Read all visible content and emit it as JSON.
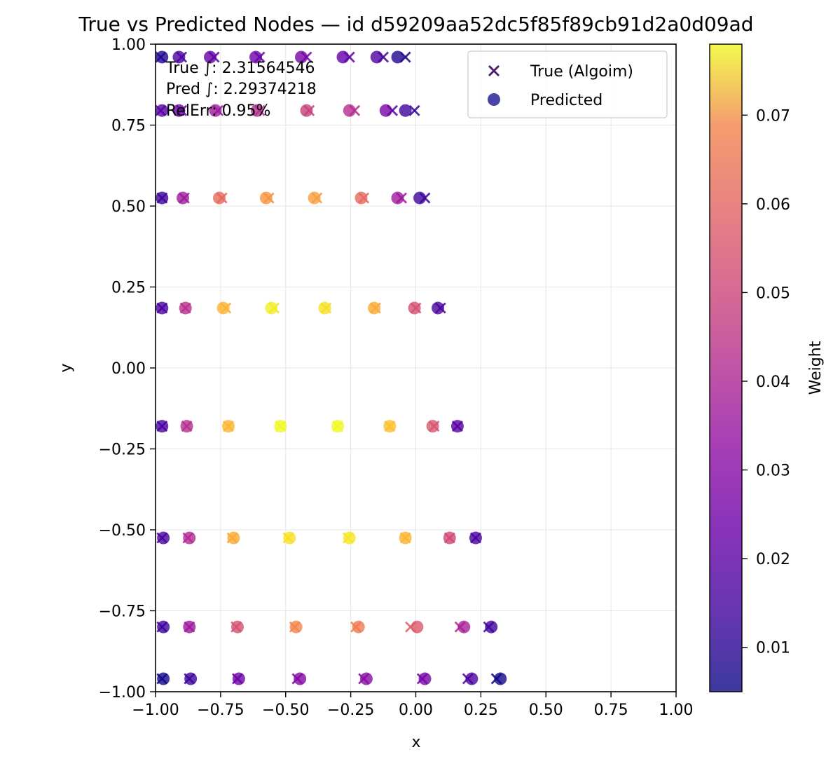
{
  "chart_data": {
    "type": "scatter",
    "title": "True vs Predicted Nodes — id d59209aa52dc5f85f89cb91d2a0d09ad",
    "xlabel": "x",
    "ylabel": "y",
    "xlim": [
      -1.0,
      1.0
    ],
    "ylim": [
      -1.0,
      1.0
    ],
    "grid": true,
    "x_ticks": [
      "−1.00",
      "−0.75",
      "−0.50",
      "−0.25",
      "0.00",
      "0.25",
      "0.50",
      "0.75",
      "1.00"
    ],
    "y_ticks": [
      "−1.00",
      "−0.75",
      "−0.50",
      "−0.25",
      "0.00",
      "0.25",
      "0.50",
      "0.75",
      "1.00"
    ],
    "x_tick_values": [
      -1,
      -0.75,
      -0.5,
      -0.25,
      0,
      0.25,
      0.5,
      0.75,
      1
    ],
    "y_tick_values": [
      -1,
      -0.75,
      -0.5,
      -0.25,
      0,
      0.25,
      0.5,
      0.75,
      1
    ],
    "legend": {
      "position": "upper right",
      "entries": [
        {
          "label": "True (Algoim)",
          "marker": "x",
          "color": "#4b1a6e"
        },
        {
          "label": "Predicted",
          "marker": "o",
          "color": "#2a239a"
        }
      ]
    },
    "annotations": [
      "True ∫: 2.31564546",
      "Pred ∫: 2.29374218",
      "RelErr: 0.95%"
    ],
    "colorbar": {
      "label": "Weight",
      "colormap": "plasma",
      "vmin": 0.005,
      "vmax": 0.078,
      "ticks": [
        "0.01",
        "0.02",
        "0.03",
        "0.04",
        "0.05",
        "0.06",
        "0.07"
      ],
      "tick_values": [
        0.01,
        0.02,
        0.03,
        0.04,
        0.05,
        0.06,
        0.07
      ]
    },
    "series": [
      {
        "name": "True (Algoim)",
        "marker": "x",
        "points": [
          {
            "x": -0.975,
            "y": -0.96,
            "w": 0.006
          },
          {
            "x": -0.87,
            "y": -0.96,
            "w": 0.012
          },
          {
            "x": -0.685,
            "y": -0.96,
            "w": 0.018
          },
          {
            "x": -0.455,
            "y": -0.96,
            "w": 0.022
          },
          {
            "x": -0.2,
            "y": -0.96,
            "w": 0.024
          },
          {
            "x": 0.025,
            "y": -0.96,
            "w": 0.022
          },
          {
            "x": 0.2,
            "y": -0.96,
            "w": 0.014
          },
          {
            "x": 0.31,
            "y": -0.96,
            "w": 0.006
          },
          {
            "x": -0.975,
            "y": -0.8,
            "w": 0.012
          },
          {
            "x": -0.87,
            "y": -0.8,
            "w": 0.03
          },
          {
            "x": -0.69,
            "y": -0.8,
            "w": 0.045
          },
          {
            "x": -0.465,
            "y": -0.8,
            "w": 0.057
          },
          {
            "x": -0.23,
            "y": -0.8,
            "w": 0.055
          },
          {
            "x": -0.02,
            "y": -0.8,
            "w": 0.048
          },
          {
            "x": 0.17,
            "y": -0.8,
            "w": 0.034
          },
          {
            "x": 0.28,
            "y": -0.8,
            "w": 0.012
          },
          {
            "x": -0.975,
            "y": -0.525,
            "w": 0.014
          },
          {
            "x": -0.875,
            "y": -0.525,
            "w": 0.035
          },
          {
            "x": -0.705,
            "y": -0.525,
            "w": 0.062
          },
          {
            "x": -0.49,
            "y": -0.525,
            "w": 0.072
          },
          {
            "x": -0.26,
            "y": -0.525,
            "w": 0.073
          },
          {
            "x": -0.04,
            "y": -0.525,
            "w": 0.066
          },
          {
            "x": 0.13,
            "y": -0.525,
            "w": 0.042
          },
          {
            "x": 0.23,
            "y": -0.525,
            "w": 0.014
          },
          {
            "x": -0.975,
            "y": -0.18,
            "w": 0.014
          },
          {
            "x": -0.88,
            "y": -0.18,
            "w": 0.036
          },
          {
            "x": -0.72,
            "y": -0.18,
            "w": 0.066
          },
          {
            "x": -0.52,
            "y": -0.18,
            "w": 0.077
          },
          {
            "x": -0.3,
            "y": -0.18,
            "w": 0.077
          },
          {
            "x": -0.1,
            "y": -0.18,
            "w": 0.068
          },
          {
            "x": 0.07,
            "y": -0.18,
            "w": 0.046
          },
          {
            "x": 0.16,
            "y": -0.18,
            "w": 0.016
          },
          {
            "x": -0.975,
            "y": 0.185,
            "w": 0.014
          },
          {
            "x": -0.885,
            "y": 0.185,
            "w": 0.035
          },
          {
            "x": -0.73,
            "y": 0.185,
            "w": 0.064
          },
          {
            "x": -0.545,
            "y": 0.185,
            "w": 0.074
          },
          {
            "x": -0.345,
            "y": 0.185,
            "w": 0.072
          },
          {
            "x": -0.155,
            "y": 0.185,
            "w": 0.062
          },
          {
            "x": 0.0,
            "y": 0.185,
            "w": 0.044
          },
          {
            "x": 0.095,
            "y": 0.185,
            "w": 0.014
          },
          {
            "x": -0.975,
            "y": 0.525,
            "w": 0.012
          },
          {
            "x": -0.89,
            "y": 0.525,
            "w": 0.03
          },
          {
            "x": -0.745,
            "y": 0.525,
            "w": 0.05
          },
          {
            "x": -0.565,
            "y": 0.525,
            "w": 0.058
          },
          {
            "x": -0.38,
            "y": 0.525,
            "w": 0.06
          },
          {
            "x": -0.2,
            "y": 0.525,
            "w": 0.05
          },
          {
            "x": -0.055,
            "y": 0.525,
            "w": 0.03
          },
          {
            "x": 0.035,
            "y": 0.525,
            "w": 0.012
          },
          {
            "x": -0.98,
            "y": 0.795,
            "w": 0.016
          },
          {
            "x": -0.9,
            "y": 0.795,
            "w": 0.02
          },
          {
            "x": -0.76,
            "y": 0.795,
            "w": 0.03
          },
          {
            "x": -0.6,
            "y": 0.795,
            "w": 0.035
          },
          {
            "x": -0.41,
            "y": 0.795,
            "w": 0.04
          },
          {
            "x": -0.235,
            "y": 0.795,
            "w": 0.035
          },
          {
            "x": -0.09,
            "y": 0.795,
            "w": 0.016
          },
          {
            "x": -0.005,
            "y": 0.795,
            "w": 0.01
          },
          {
            "x": -0.98,
            "y": 0.96,
            "w": 0.008
          },
          {
            "x": -0.9,
            "y": 0.96,
            "w": 0.014
          },
          {
            "x": -0.775,
            "y": 0.96,
            "w": 0.018
          },
          {
            "x": -0.6,
            "y": 0.96,
            "w": 0.02
          },
          {
            "x": -0.42,
            "y": 0.96,
            "w": 0.022
          },
          {
            "x": -0.255,
            "y": 0.96,
            "w": 0.018
          },
          {
            "x": -0.125,
            "y": 0.96,
            "w": 0.012
          },
          {
            "x": -0.04,
            "y": 0.96,
            "w": 0.006
          }
        ]
      },
      {
        "name": "Predicted",
        "marker": "o",
        "points": [
          {
            "x": -0.97,
            "y": -0.96,
            "w": 0.006
          },
          {
            "x": -0.865,
            "y": -0.96,
            "w": 0.012
          },
          {
            "x": -0.68,
            "y": -0.96,
            "w": 0.02
          },
          {
            "x": -0.445,
            "y": -0.96,
            "w": 0.025
          },
          {
            "x": -0.19,
            "y": -0.96,
            "w": 0.026
          },
          {
            "x": 0.035,
            "y": -0.96,
            "w": 0.022
          },
          {
            "x": 0.215,
            "y": -0.96,
            "w": 0.014
          },
          {
            "x": 0.325,
            "y": -0.96,
            "w": 0.006
          },
          {
            "x": -0.97,
            "y": -0.8,
            "w": 0.012
          },
          {
            "x": -0.87,
            "y": -0.8,
            "w": 0.03
          },
          {
            "x": -0.685,
            "y": -0.8,
            "w": 0.044
          },
          {
            "x": -0.46,
            "y": -0.8,
            "w": 0.056
          },
          {
            "x": -0.22,
            "y": -0.8,
            "w": 0.054
          },
          {
            "x": 0.005,
            "y": -0.8,
            "w": 0.046
          },
          {
            "x": 0.185,
            "y": -0.8,
            "w": 0.032
          },
          {
            "x": 0.29,
            "y": -0.8,
            "w": 0.012
          },
          {
            "x": -0.97,
            "y": -0.525,
            "w": 0.014
          },
          {
            "x": -0.87,
            "y": -0.525,
            "w": 0.034
          },
          {
            "x": -0.7,
            "y": -0.525,
            "w": 0.064
          },
          {
            "x": -0.485,
            "y": -0.525,
            "w": 0.074
          },
          {
            "x": -0.255,
            "y": -0.525,
            "w": 0.075
          },
          {
            "x": -0.04,
            "y": -0.525,
            "w": 0.066
          },
          {
            "x": 0.13,
            "y": -0.525,
            "w": 0.042
          },
          {
            "x": 0.23,
            "y": -0.525,
            "w": 0.014
          },
          {
            "x": -0.975,
            "y": -0.18,
            "w": 0.014
          },
          {
            "x": -0.88,
            "y": -0.18,
            "w": 0.035
          },
          {
            "x": -0.72,
            "y": -0.18,
            "w": 0.066
          },
          {
            "x": -0.52,
            "y": -0.18,
            "w": 0.078
          },
          {
            "x": -0.3,
            "y": -0.18,
            "w": 0.078
          },
          {
            "x": -0.1,
            "y": -0.18,
            "w": 0.068
          },
          {
            "x": 0.065,
            "y": -0.18,
            "w": 0.045
          },
          {
            "x": 0.16,
            "y": -0.18,
            "w": 0.016
          },
          {
            "x": -0.975,
            "y": 0.185,
            "w": 0.014
          },
          {
            "x": -0.885,
            "y": 0.185,
            "w": 0.036
          },
          {
            "x": -0.74,
            "y": 0.185,
            "w": 0.066
          },
          {
            "x": -0.555,
            "y": 0.185,
            "w": 0.076
          },
          {
            "x": -0.35,
            "y": 0.185,
            "w": 0.074
          },
          {
            "x": -0.16,
            "y": 0.185,
            "w": 0.064
          },
          {
            "x": -0.005,
            "y": 0.185,
            "w": 0.044
          },
          {
            "x": 0.085,
            "y": 0.185,
            "w": 0.014
          },
          {
            "x": -0.975,
            "y": 0.525,
            "w": 0.012
          },
          {
            "x": -0.895,
            "y": 0.525,
            "w": 0.03
          },
          {
            "x": -0.755,
            "y": 0.525,
            "w": 0.05
          },
          {
            "x": -0.575,
            "y": 0.525,
            "w": 0.06
          },
          {
            "x": -0.39,
            "y": 0.525,
            "w": 0.062
          },
          {
            "x": -0.21,
            "y": 0.525,
            "w": 0.05
          },
          {
            "x": -0.07,
            "y": 0.525,
            "w": 0.03
          },
          {
            "x": 0.015,
            "y": 0.525,
            "w": 0.012
          },
          {
            "x": -0.975,
            "y": 0.795,
            "w": 0.016
          },
          {
            "x": -0.91,
            "y": 0.795,
            "w": 0.02
          },
          {
            "x": -0.77,
            "y": 0.795,
            "w": 0.03
          },
          {
            "x": -0.61,
            "y": 0.795,
            "w": 0.035
          },
          {
            "x": -0.42,
            "y": 0.795,
            "w": 0.04
          },
          {
            "x": -0.255,
            "y": 0.795,
            "w": 0.035
          },
          {
            "x": -0.115,
            "y": 0.795,
            "w": 0.022
          },
          {
            "x": -0.04,
            "y": 0.795,
            "w": 0.012
          },
          {
            "x": -0.975,
            "y": 0.96,
            "w": 0.008
          },
          {
            "x": -0.91,
            "y": 0.96,
            "w": 0.014
          },
          {
            "x": -0.79,
            "y": 0.96,
            "w": 0.018
          },
          {
            "x": -0.615,
            "y": 0.96,
            "w": 0.02
          },
          {
            "x": -0.44,
            "y": 0.96,
            "w": 0.022
          },
          {
            "x": -0.28,
            "y": 0.96,
            "w": 0.018
          },
          {
            "x": -0.15,
            "y": 0.96,
            "w": 0.014
          },
          {
            "x": -0.07,
            "y": 0.96,
            "w": 0.008
          }
        ]
      }
    ]
  }
}
